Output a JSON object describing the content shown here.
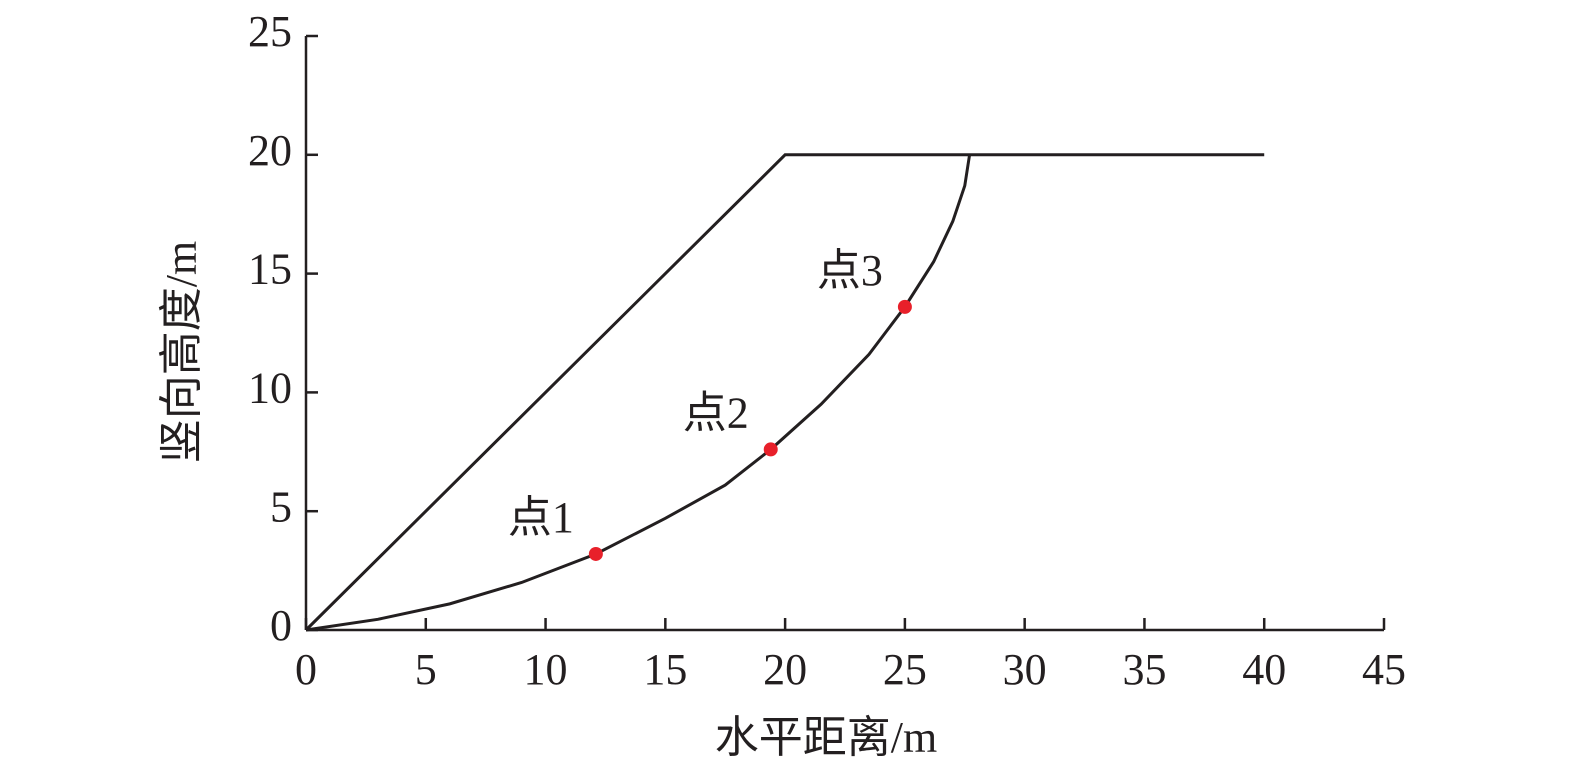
{
  "chart_data": {
    "type": "line",
    "xlabel": "水平距离/m",
    "ylabel": "竖向高度/m",
    "xlim": [
      0,
      45
    ],
    "xticks": [
      0,
      5,
      10,
      15,
      20,
      25,
      30,
      35,
      40,
      45
    ],
    "ylim": [
      0,
      25
    ],
    "yticks": [
      0,
      5,
      10,
      15,
      20,
      25
    ],
    "series": [
      {
        "type": "line",
        "color": "#231f20",
        "x": [
          0,
          20,
          40
        ],
        "values": [
          0,
          20,
          20
        ]
      },
      {
        "type": "line",
        "color": "#231f20",
        "x": [
          0,
          3,
          6,
          9,
          12.1,
          15,
          17.5,
          19.4,
          21.5,
          23.5,
          25,
          26.2,
          27,
          27.5,
          27.7
        ],
        "values": [
          0,
          0.45,
          1.1,
          2,
          3.2,
          4.7,
          6.1,
          7.6,
          9.5,
          11.6,
          13.6,
          15.5,
          17.2,
          18.7,
          20
        ]
      },
      {
        "type": "scatter",
        "color": "#e8202a",
        "x": [
          12.1,
          19.4,
          25
        ],
        "values": [
          3.2,
          7.6,
          13.6
        ],
        "labels": [
          "点1",
          "点2",
          "点3"
        ]
      }
    ]
  }
}
